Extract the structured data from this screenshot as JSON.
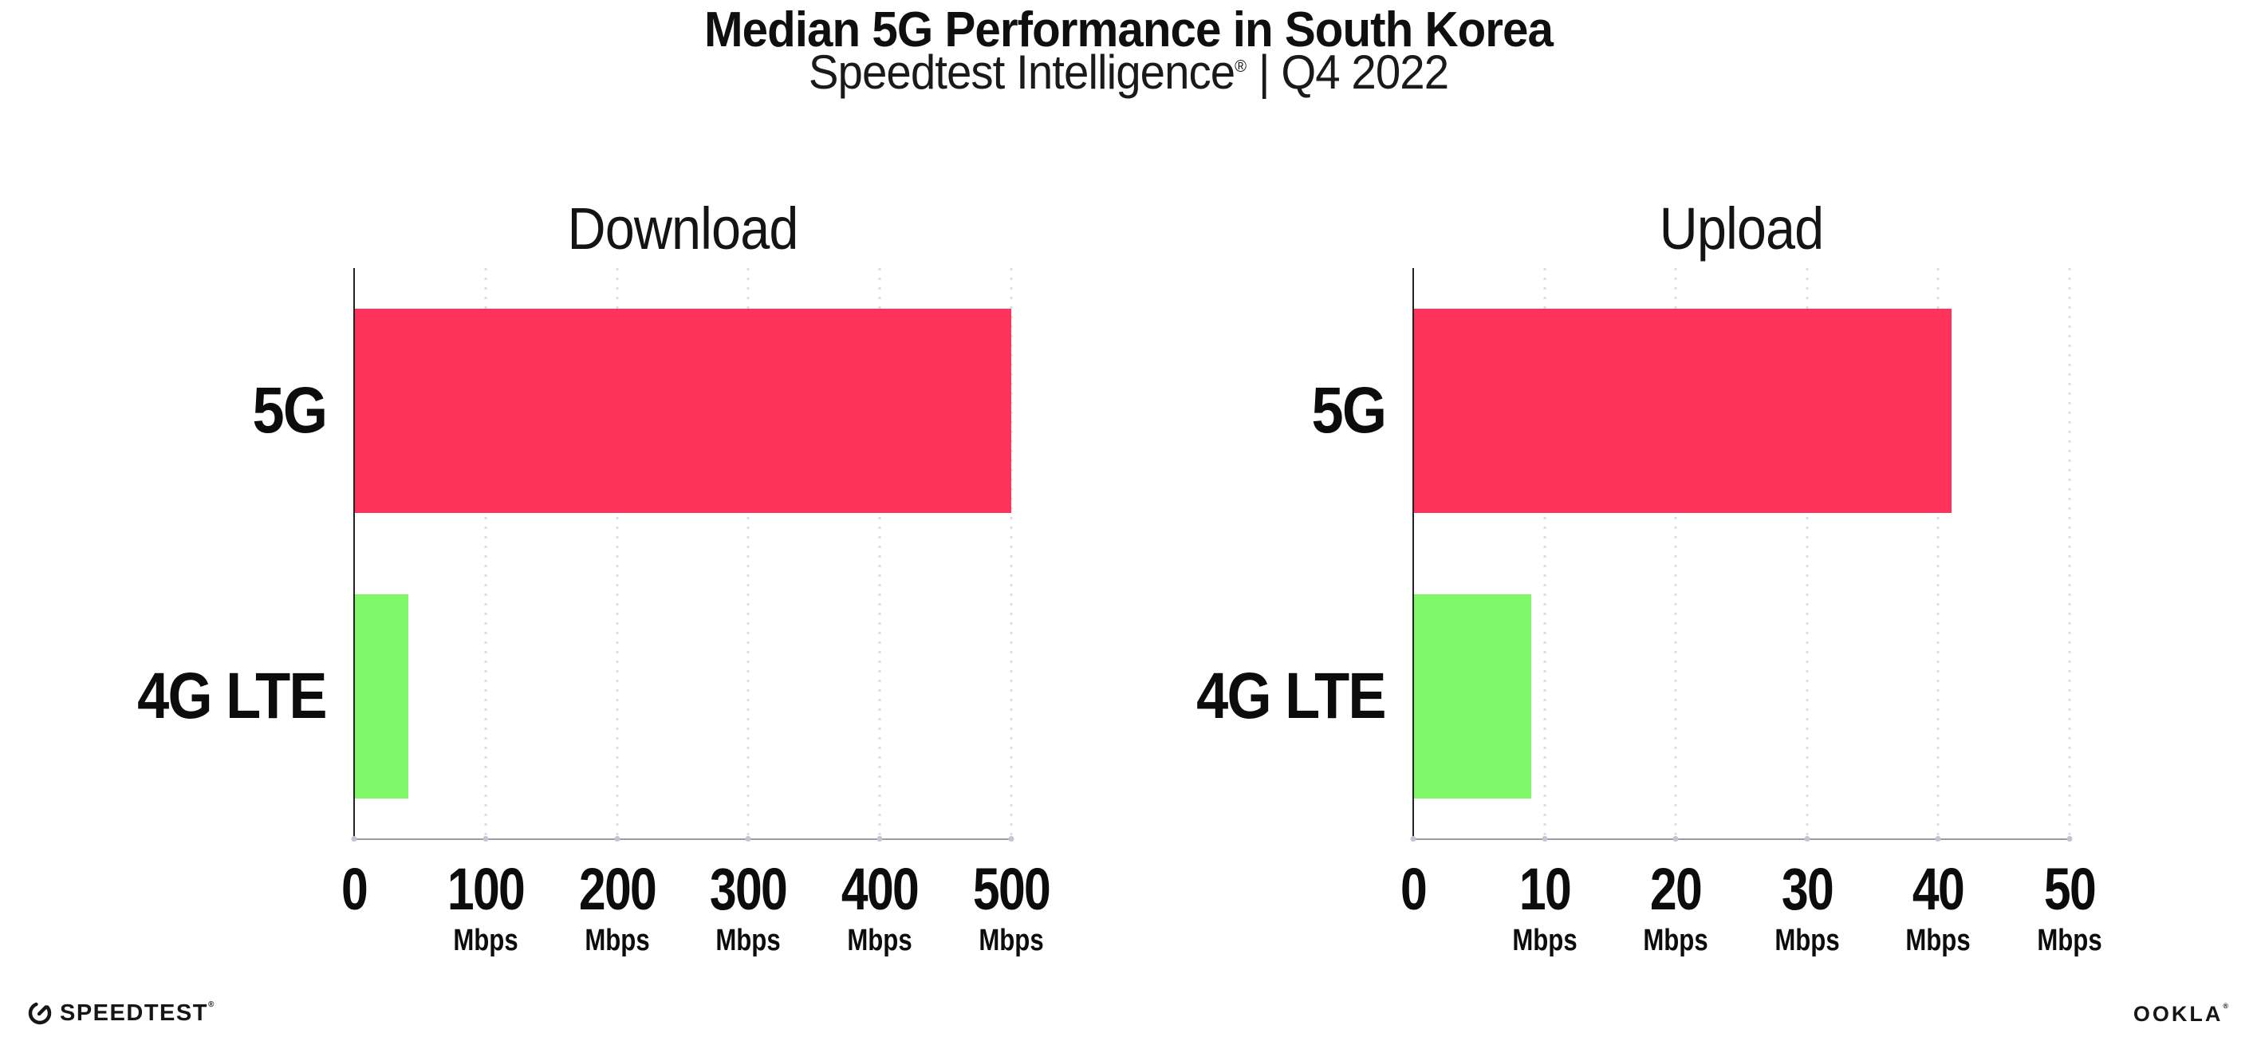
{
  "header": {
    "title": "Median 5G Performance in South Korea",
    "subtitle": {
      "brand": "Speedtest Intelligence",
      "reg_mark": "®",
      "separator": " | ",
      "period": "Q4 2022"
    }
  },
  "chart_data": [
    {
      "type": "bar",
      "orientation": "horizontal",
      "title": "Download",
      "categories": [
        "5G",
        "4G LTE"
      ],
      "values": [
        500,
        41
      ],
      "unit": "Mbps",
      "xlim": [
        0,
        500
      ],
      "xticks": [
        {
          "label": "0",
          "unit": ""
        },
        {
          "label": "100",
          "unit": "Mbps"
        },
        {
          "label": "200",
          "unit": "Mbps"
        },
        {
          "label": "300",
          "unit": "Mbps"
        },
        {
          "label": "400",
          "unit": "Mbps"
        },
        {
          "label": "500",
          "unit": "Mbps"
        }
      ],
      "bar_colors": [
        "#fe335b",
        "#7ef868"
      ],
      "grid": "vertical-dotted",
      "legend": "none"
    },
    {
      "type": "bar",
      "orientation": "horizontal",
      "title": "Upload",
      "categories": [
        "5G",
        "4G LTE"
      ],
      "values": [
        41,
        9
      ],
      "unit": "Mbps",
      "xlim": [
        0,
        50
      ],
      "xticks": [
        {
          "label": "0",
          "unit": ""
        },
        {
          "label": "10",
          "unit": "Mbps"
        },
        {
          "label": "20",
          "unit": "Mbps"
        },
        {
          "label": "30",
          "unit": "Mbps"
        },
        {
          "label": "40",
          "unit": "Mbps"
        },
        {
          "label": "50",
          "unit": "Mbps"
        }
      ],
      "bar_colors": [
        "#fe335b",
        "#7ef868"
      ],
      "grid": "vertical-dotted",
      "legend": "none"
    }
  ],
  "footer": {
    "speedtest_logo_text": "SPEEDTEST",
    "speedtest_reg_mark": "®",
    "ookla_logo_text": "OOKLA",
    "ookla_reg_mark": "®"
  },
  "colors": {
    "bar_5g": "#fe335b",
    "bar_4g_lte": "#7ef868",
    "gridline": "#dcdde8",
    "x_axis_line": "#9a9aa2",
    "y_axis_line": "#222222",
    "text": "#0f0f0f"
  }
}
